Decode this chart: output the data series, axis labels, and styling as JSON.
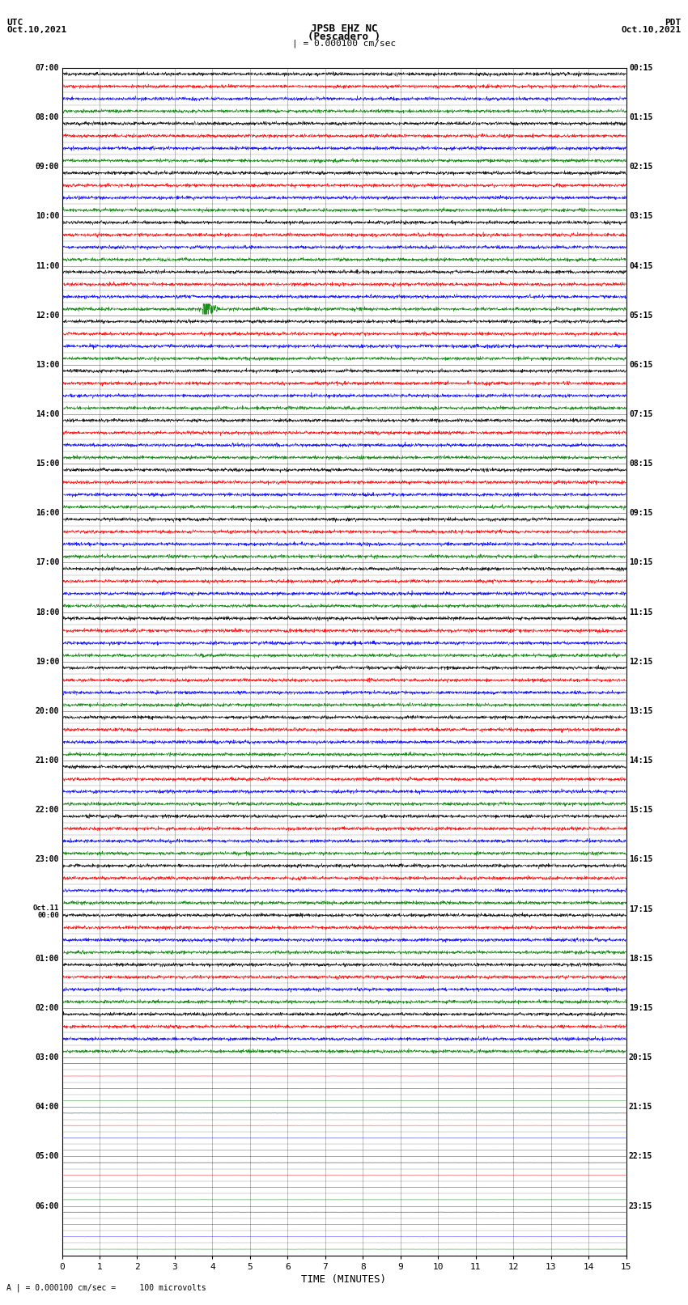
{
  "title_line1": "JPSB EHZ NC",
  "title_line2": "(Pescadero )",
  "title_line3": "| = 0.000100 cm/sec",
  "left_header_line1": "UTC",
  "left_header_line2": "Oct.10,2021",
  "right_header_line1": "PDT",
  "right_header_line2": "Oct.10,2021",
  "bottom_label": "TIME (MINUTES)",
  "bottom_note": "A | = 0.000100 cm/sec =     100 microvolts",
  "xlim": [
    0,
    15
  ],
  "xticks": [
    0,
    1,
    2,
    3,
    4,
    5,
    6,
    7,
    8,
    9,
    10,
    11,
    12,
    13,
    14,
    15
  ],
  "background_color": "#ffffff",
  "trace_colors": [
    "black",
    "red",
    "blue",
    "green"
  ],
  "num_groups": 96,
  "row_labels_left": [
    "07:00",
    "",
    "",
    "",
    "08:00",
    "",
    "",
    "",
    "09:00",
    "",
    "",
    "",
    "10:00",
    "",
    "",
    "",
    "11:00",
    "",
    "",
    "",
    "12:00",
    "",
    "",
    "",
    "13:00",
    "",
    "",
    "",
    "14:00",
    "",
    "",
    "",
    "15:00",
    "",
    "",
    "",
    "16:00",
    "",
    "",
    "",
    "17:00",
    "",
    "",
    "",
    "18:00",
    "",
    "",
    "",
    "19:00",
    "",
    "",
    "",
    "20:00",
    "",
    "",
    "",
    "21:00",
    "",
    "",
    "",
    "22:00",
    "",
    "",
    "",
    "23:00",
    "",
    "",
    "",
    "Oct.11|00:00",
    "",
    "",
    "",
    "01:00",
    "",
    "",
    "",
    "02:00",
    "",
    "",
    "",
    "03:00",
    "",
    "",
    "",
    "04:00",
    "",
    "",
    "",
    "05:00",
    "",
    "",
    "",
    "06:00",
    "",
    "",
    ""
  ],
  "row_labels_right": [
    "00:15",
    "",
    "",
    "",
    "01:15",
    "",
    "",
    "",
    "02:15",
    "",
    "",
    "",
    "03:15",
    "",
    "",
    "",
    "04:15",
    "",
    "",
    "",
    "05:15",
    "",
    "",
    "",
    "06:15",
    "",
    "",
    "",
    "07:15",
    "",
    "",
    "",
    "08:15",
    "",
    "",
    "",
    "09:15",
    "",
    "",
    "",
    "10:15",
    "",
    "",
    "",
    "11:15",
    "",
    "",
    "",
    "12:15",
    "",
    "",
    "",
    "13:15",
    "",
    "",
    "",
    "14:15",
    "",
    "",
    "",
    "15:15",
    "",
    "",
    "",
    "16:15",
    "",
    "",
    "",
    "17:15",
    "",
    "",
    "",
    "18:15",
    "",
    "",
    "",
    "19:15",
    "",
    "",
    "",
    "20:15",
    "",
    "",
    "",
    "21:15",
    "",
    "",
    "",
    "22:15",
    "",
    "",
    "",
    "23:15",
    "",
    "",
    ""
  ],
  "quiet_groups": [
    20,
    21,
    22,
    23,
    24,
    25,
    26,
    27,
    28,
    29,
    30,
    31
  ],
  "very_active_groups": [
    32,
    33,
    34,
    35,
    36,
    37,
    38,
    39,
    40,
    41,
    42,
    43,
    44,
    45,
    46,
    47,
    48,
    49,
    50,
    51,
    52,
    53,
    54,
    55
  ]
}
